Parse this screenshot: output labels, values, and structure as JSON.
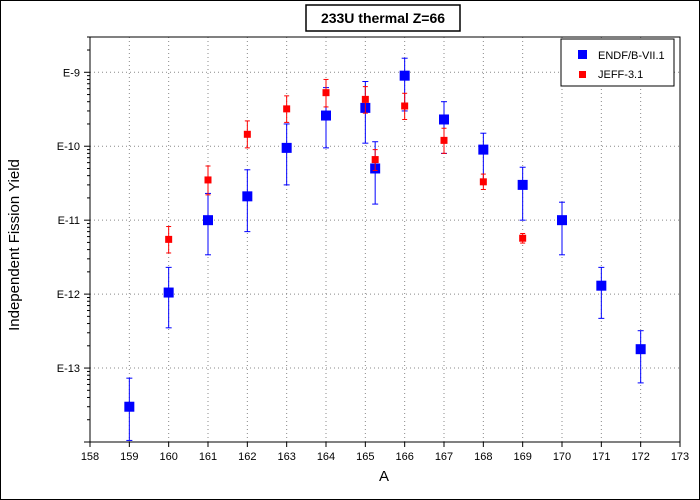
{
  "chart_data": {
    "type": "scatter",
    "title": "233U thermal Z=66",
    "xlabel": "A",
    "ylabel": "Independent Fission Yield",
    "xlim": [
      158,
      173
    ],
    "ylim": [
      1e-14,
      3e-09
    ],
    "yscale": "log",
    "grid": true,
    "legend_position": "top-right",
    "x_ticks": [
      "158",
      "159",
      "160",
      "161",
      "162",
      "163",
      "164",
      "165",
      "166",
      "167",
      "168",
      "169",
      "170",
      "171",
      "172",
      "173"
    ],
    "y_ticks": [
      {
        "value": 1e-09,
        "label": "E-9"
      },
      {
        "value": 1e-10,
        "label": "E-10"
      },
      {
        "value": 1e-11,
        "label": "E-11"
      },
      {
        "value": 1e-12,
        "label": "E-12"
      },
      {
        "value": 1e-13,
        "label": "E-13"
      }
    ],
    "series": [
      {
        "name": "ENDF/B-VII.1",
        "color": "#0000ff",
        "points": [
          {
            "x": 159,
            "y": 3e-14,
            "lo": 1.05e-14,
            "hi": 7.3e-14
          },
          {
            "x": 160,
            "y": 1.05e-12,
            "lo": 3.5e-13,
            "hi": 2.3e-12
          },
          {
            "x": 161,
            "y": 1e-11,
            "lo": 3.4e-12,
            "hi": 2.3e-11
          },
          {
            "x": 162,
            "y": 2.1e-11,
            "lo": 7e-12,
            "hi": 4.8e-11
          },
          {
            "x": 163,
            "y": 9.5e-11,
            "lo": 3e-11,
            "hi": 2e-10
          },
          {
            "x": 164,
            "y": 2.6e-10,
            "lo": 9.5e-11,
            "hi": 6.2e-10
          },
          {
            "x": 165,
            "y": 3.3e-10,
            "lo": 1.1e-10,
            "hi": 7.5e-10
          },
          {
            "x": 165.25,
            "y": 5e-11,
            "lo": 1.65e-11,
            "hi": 1.15e-10
          },
          {
            "x": 166,
            "y": 9e-10,
            "lo": 3e-10,
            "hi": 1.55e-09
          },
          {
            "x": 167,
            "y": 2.3e-10,
            "lo": 8e-11,
            "hi": 4e-10
          },
          {
            "x": 168,
            "y": 9e-11,
            "lo": 3.3e-11,
            "hi": 1.5e-10
          },
          {
            "x": 169,
            "y": 3e-11,
            "lo": 1e-11,
            "hi": 5.2e-11
          },
          {
            "x": 170,
            "y": 1e-11,
            "lo": 3.4e-12,
            "hi": 1.75e-11
          },
          {
            "x": 171,
            "y": 1.3e-12,
            "lo": 4.7e-13,
            "hi": 2.3e-12
          },
          {
            "x": 172,
            "y": 1.8e-13,
            "lo": 6.3e-14,
            "hi": 3.2e-13
          }
        ]
      },
      {
        "name": "JEFF-3.1",
        "color": "#ff0000",
        "points": [
          {
            "x": 160,
            "y": 5.5e-12,
            "lo": 3.6e-12,
            "hi": 8.2e-12
          },
          {
            "x": 161,
            "y": 3.5e-11,
            "lo": 2.2e-11,
            "hi": 5.4e-11
          },
          {
            "x": 162,
            "y": 1.45e-10,
            "lo": 9.5e-11,
            "hi": 2.2e-10
          },
          {
            "x": 163,
            "y": 3.2e-10,
            "lo": 2.1e-10,
            "hi": 4.8e-10
          },
          {
            "x": 164,
            "y": 5.3e-10,
            "lo": 3.4e-10,
            "hi": 8e-10
          },
          {
            "x": 165,
            "y": 4.3e-10,
            "lo": 2.8e-10,
            "hi": 6.4e-10
          },
          {
            "x": 165.25,
            "y": 6.6e-11,
            "lo": 4.7e-11,
            "hi": 9e-11
          },
          {
            "x": 166,
            "y": 3.5e-10,
            "lo": 2.3e-10,
            "hi": 5.2e-10
          },
          {
            "x": 167,
            "y": 1.2e-10,
            "lo": 8e-11,
            "hi": 1.75e-10
          },
          {
            "x": 168,
            "y": 3.3e-11,
            "lo": 2.6e-11,
            "hi": 4.2e-11
          },
          {
            "x": 169,
            "y": 5.7e-12,
            "lo": 4.9e-12,
            "hi": 6.6e-12
          }
        ]
      }
    ]
  }
}
